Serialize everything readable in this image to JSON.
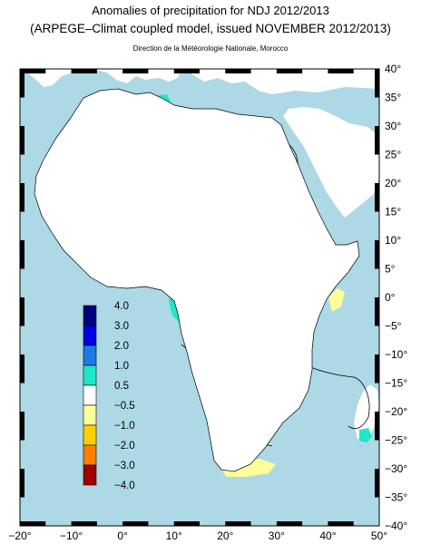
{
  "header": {
    "title": "Anomalies of precipitation for NDJ 2012/2013",
    "subtitle": "(ARPEGE–Climat coupled model, issued NOVEMBER 2012/2013)",
    "credit": "Direction de la Météorologie Nationale, Morocco"
  },
  "map": {
    "lon_range": [
      -20,
      50
    ],
    "lat_range": [
      -40,
      40
    ],
    "lon_ticks": [
      "−20°",
      "−10°",
      "0°",
      "10°",
      "20°",
      "30°",
      "40°",
      "50°"
    ],
    "lat_ticks": [
      "40°",
      "35°",
      "30°",
      "25°",
      "20°",
      "15°",
      "10°",
      "5°",
      "0°",
      "−5°",
      "−10°",
      "−15°",
      "−20°",
      "−25°",
      "−30°",
      "−35°",
      "−40°"
    ],
    "ocean_color": "#add8e6",
    "land_color": "#ffffff"
  },
  "legend": {
    "labels": [
      "4.0",
      "3.0",
      "2.0",
      "1.0",
      "0.5",
      "−0.5",
      "−1.0",
      "−2.0",
      "−3.0",
      "−4.0"
    ],
    "colors": [
      "#00007f",
      "#0000e0",
      "#1e78e6",
      "#1ee6c8",
      "#ffffff",
      "#ffff9a",
      "#ffd000",
      "#ff7f00",
      "#a00000"
    ]
  },
  "colors": {
    "wet_strong": "#0000c8",
    "wet_mid": "#1e78e6",
    "wet_light": "#1ee6c8",
    "dry_light": "#ffff9a"
  }
}
